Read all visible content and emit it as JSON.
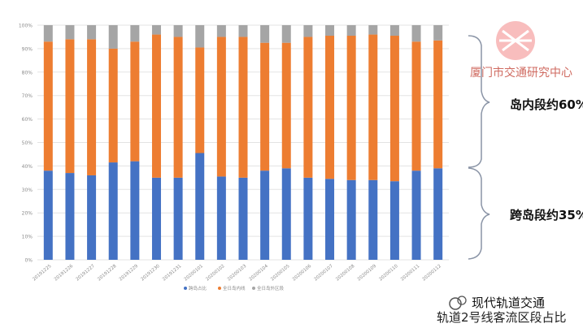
{
  "chart_data": {
    "type": "bar",
    "stacked": true,
    "percent": true,
    "title": "",
    "xlabel": "",
    "ylabel": "",
    "ylim": [
      0,
      100
    ],
    "yticks": [
      "0%",
      "10%",
      "20%",
      "30%",
      "40%",
      "50%",
      "60%",
      "70%",
      "80%",
      "90%",
      "100%"
    ],
    "grid": true,
    "legend_position": "bottom",
    "categories": [
      "20191225",
      "20191226",
      "20191227",
      "20191228",
      "20191229",
      "20191230",
      "20191231",
      "20200101",
      "20200102",
      "20200103",
      "20200104",
      "20200105",
      "20200106",
      "20200107",
      "20200108",
      "20200109",
      "20200110",
      "20200111",
      "20200112"
    ],
    "series": [
      {
        "name": "跨岛占比",
        "color": "#4472c4",
        "values": [
          38,
          37,
          36,
          41.5,
          42,
          35,
          35,
          45.5,
          35.5,
          35,
          38,
          39,
          35,
          34.5,
          34,
          34,
          33.5,
          38,
          39
        ]
      },
      {
        "name": "全日岛内线",
        "color": "#ed7d31",
        "values": [
          55,
          57,
          58,
          48.5,
          51,
          61,
          60,
          45,
          59.5,
          60,
          54.5,
          53.5,
          60,
          61,
          61.5,
          62,
          62,
          55,
          54.5
        ]
      },
      {
        "name": "全日岛外区段",
        "color": "#a5a5a5",
        "values": [
          7,
          6,
          6,
          10,
          7,
          4,
          5,
          9.5,
          5,
          5,
          7.5,
          7.5,
          5,
          4.5,
          4.5,
          4,
          4.5,
          7,
          6.5
        ]
      }
    ]
  },
  "logo": {
    "text": "厦门市交通研究中心"
  },
  "annotations": {
    "island_inner": "岛内段约60%",
    "cross_island": "跨岛段约35%"
  },
  "watermark": {
    "text": "现代轨道交通"
  },
  "footer": {
    "caption": "轨道2号线客流区段占比"
  }
}
